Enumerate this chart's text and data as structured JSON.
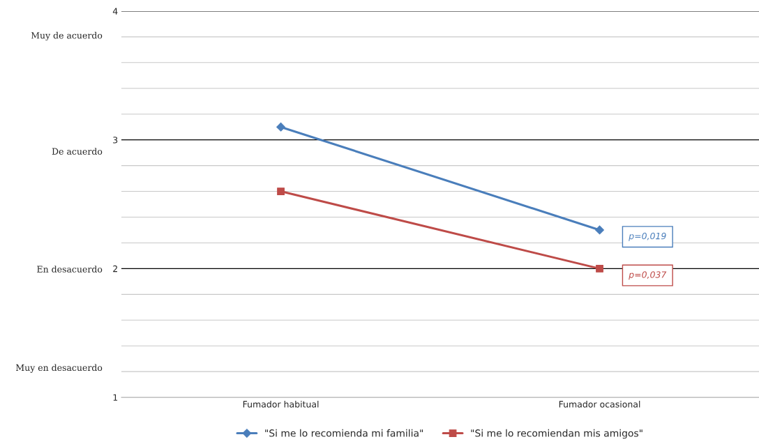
{
  "chart_data": {
    "type": "line",
    "categories": [
      "Fumador habitual",
      "Fumador ocasional"
    ],
    "series": [
      {
        "name": "\"Si me lo recomienda mi familia\"",
        "color": "#4a7ebb",
        "values": [
          3.1,
          2.3
        ],
        "marker": "diamond"
      },
      {
        "name": "\"Si me lo recomiendan mis amigos\"",
        "color": "#be4b48",
        "values": [
          2.6,
          2.0
        ],
        "marker": "square"
      }
    ],
    "ylim": [
      1,
      4
    ],
    "yticks": [
      1,
      {
        "value": 1.2,
        "label": null
      },
      {
        "value": 1.4,
        "label": null
      },
      {
        "value": 1.6,
        "label": null
      },
      {
        "value": 1.8,
        "label": null
      },
      2,
      {
        "value": 2.2,
        "label": null
      },
      {
        "value": 2.4,
        "label": null
      },
      {
        "value": 2.6,
        "label": null
      },
      {
        "value": 2.8,
        "label": null
      },
      3,
      {
        "value": 3.2,
        "label": null
      },
      {
        "value": 3.4,
        "label": null
      },
      {
        "value": 3.6,
        "label": null
      },
      {
        "value": 3.8,
        "label": null
      },
      4
    ],
    "grid": "y",
    "legend": "bottom",
    "annotations": [
      "Muy de acuerdo",
      "De acuerdo",
      "En desacuerdo",
      "Muy en desacuerdo",
      "p=0,019",
      "p=0,037"
    ]
  }
}
